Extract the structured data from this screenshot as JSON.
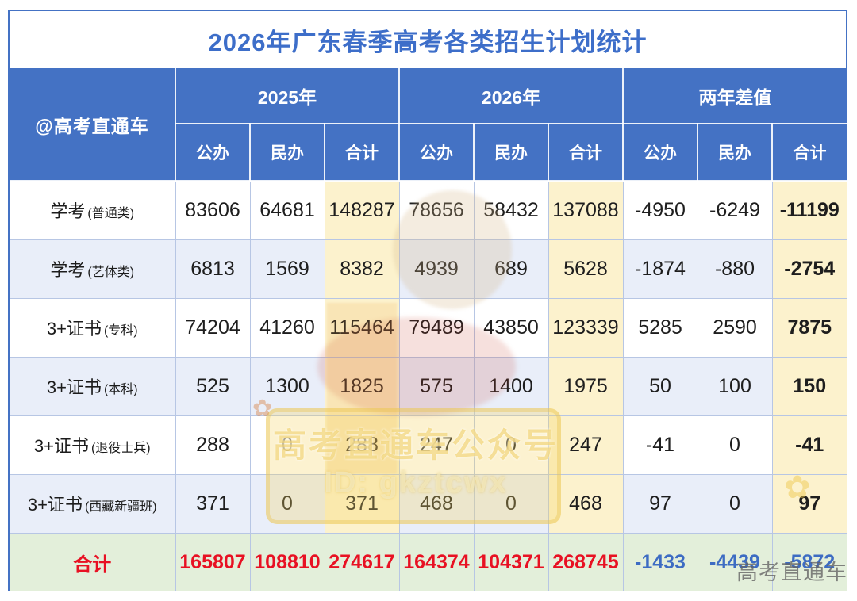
{
  "title": "2026年广东春季高考各类招生计划统计",
  "corner_label": "@高考直通车",
  "groups": {
    "g2025": "2025年",
    "g2026": "2026年",
    "gdiff": "两年差值"
  },
  "subheaders": [
    "公办",
    "民办",
    "合计"
  ],
  "rows": [
    {
      "label": "学考",
      "sub": "(普通类)",
      "v": [
        "83606",
        "64681",
        "148287",
        "78656",
        "58432",
        "137088",
        "-4950",
        "-6249",
        "-11199"
      ],
      "diff_cls": "v-blue"
    },
    {
      "label": "学考",
      "sub": "(艺体类)",
      "v": [
        "6813",
        "1569",
        "8382",
        "4939",
        "689",
        "5628",
        "-1874",
        "-880",
        "-2754"
      ],
      "diff_cls": "v-blue"
    },
    {
      "label": "3+证书",
      "sub": "(专科)",
      "v": [
        "74204",
        "41260",
        "115464",
        "79489",
        "43850",
        "123339",
        "5285",
        "2590",
        "7875"
      ],
      "diff_cls": "v-red"
    },
    {
      "label": "3+证书",
      "sub": "(本科)",
      "v": [
        "525",
        "1300",
        "1825",
        "575",
        "1400",
        "1975",
        "50",
        "100",
        "150"
      ],
      "diff_cls": "v-red"
    },
    {
      "label": "3+证书",
      "sub": "(退役士兵)",
      "v": [
        "288",
        "0",
        "288",
        "247",
        "0",
        "247",
        "-41",
        "0",
        "-41"
      ],
      "diff_cls": "v-red"
    },
    {
      "label": "3+证书",
      "sub": "(西藏新疆班)",
      "v": [
        "371",
        "0",
        "371",
        "468",
        "0",
        "468",
        "97",
        "0",
        "97"
      ],
      "diff_cls": "v-red"
    }
  ],
  "total": {
    "label": "合计",
    "v": [
      "165807",
      "108810",
      "274617",
      "164374",
      "104371",
      "268745",
      "-1433",
      "-4439",
      "-5872"
    ]
  },
  "watermarks": {
    "brand": "高考直通车公众号",
    "id": "ID: gkztcwx",
    "corner": "高考直通车",
    "flower": "✿"
  },
  "colors": {
    "header_blue": "#4472C4",
    "title_blue": "#3D6EC9",
    "grid_blue": "#B7C6E4",
    "alt_row": "#E9EEF9",
    "sum_cream": "#FCF2CD",
    "total_green": "#E3EFDA",
    "value_red": "#E81123",
    "value_blue": "#3D6CC3"
  }
}
